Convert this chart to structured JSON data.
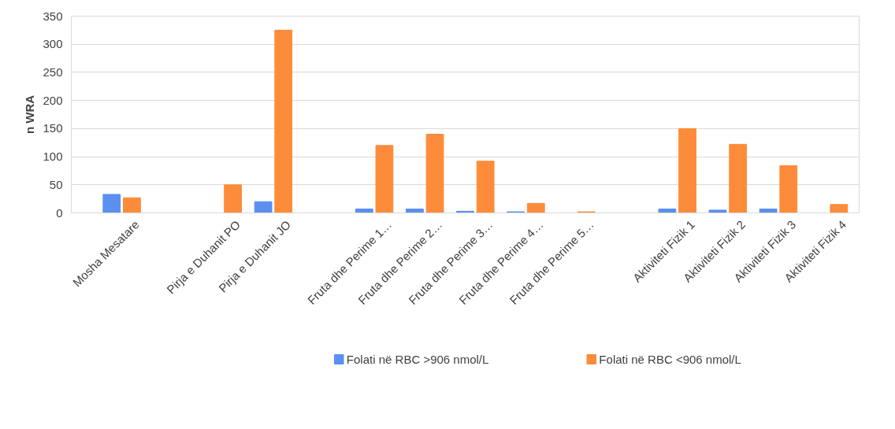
{
  "chart_data": {
    "type": "bar",
    "ylabel": "n WRA",
    "categories": [
      "Mosha Mesatare",
      null,
      "Pirja e Duhanit PO",
      "Pirja e Duhanit JO",
      null,
      "Fruta dhe Perime 1…",
      "Fruta dhe Perime 2…",
      "Fruta dhe Perime 3…",
      "Fruta dhe Perime 4…",
      "Fruta dhe Perime 5…",
      null,
      "Aktiviteti Fizik 1",
      "Aktiviteti Fizik 2",
      "Aktiviteti Fizik 3",
      "Aktiviteti Fizik 4"
    ],
    "series": [
      {
        "name": "Folati në RBC  >906 nmol/L",
        "color": "#5b8ff0",
        "values": [
          33,
          null,
          0,
          20,
          null,
          7,
          7,
          3,
          2,
          0,
          null,
          7,
          5,
          7,
          0
        ]
      },
      {
        "name": "Folati në RBC <906 nmol/L",
        "color": "#fd8c3a",
        "values": [
          27,
          null,
          50,
          325,
          null,
          120,
          140,
          92,
          17,
          2,
          null,
          150,
          122,
          84,
          15
        ]
      }
    ],
    "ylim": [
      0,
      350
    ],
    "yticks": [
      0,
      50,
      100,
      150,
      200,
      250,
      300,
      350
    ],
    "grid": "y",
    "legend": "bottom"
  }
}
